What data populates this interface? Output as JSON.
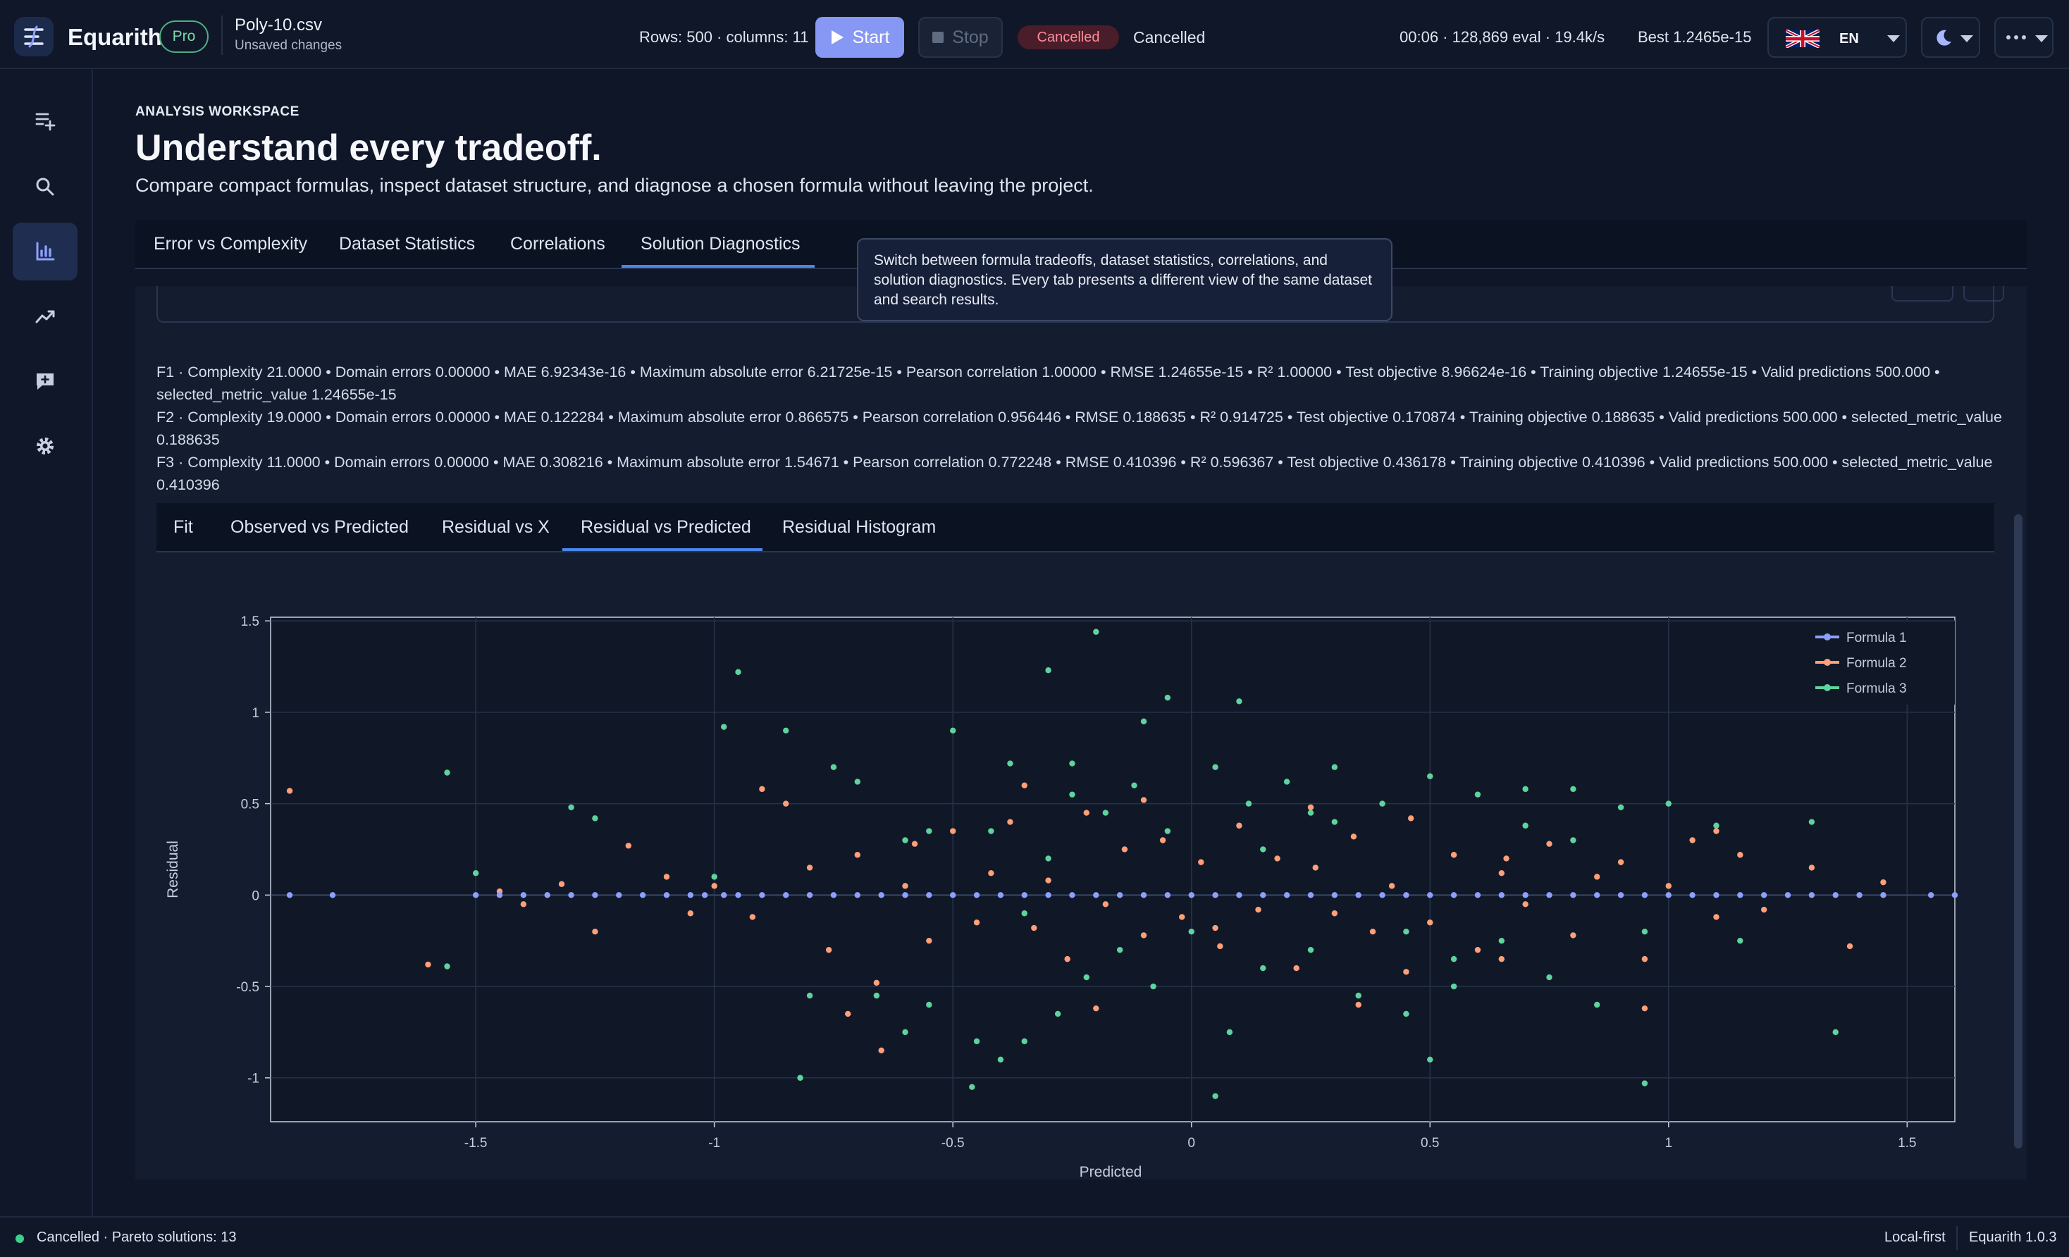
{
  "app": {
    "name": "Equarith",
    "plan": "Pro"
  },
  "file": {
    "name": "Poly-10.csv",
    "status": "Unsaved changes"
  },
  "dataset_info": "Rows: 500 · columns: 11",
  "toolbar": {
    "start_label": "Start",
    "stop_label": "Stop",
    "status_badge": "Cancelled",
    "status_text": "Cancelled",
    "run_stats": "00:06 · 128,869 eval · 19.4k/s",
    "best": "Best 1.2465e-15",
    "language": "EN"
  },
  "page": {
    "eyebrow": "ANALYSIS WORKSPACE",
    "title": "Understand every tradeoff.",
    "subtitle": "Compare compact formulas, inspect dataset structure, and diagnose a chosen formula without leaving the project."
  },
  "tabs": [
    {
      "label": "Error vs Complexity"
    },
    {
      "label": "Dataset Statistics"
    },
    {
      "label": "Correlations"
    },
    {
      "label": "Solution Diagnostics",
      "active": true
    }
  ],
  "tooltip": "Switch between formula tradeoffs, dataset statistics, correlations, and solution diagnostics. Every tab presents a different view of the same dataset and search results.",
  "metrics": [
    "F1 · Complexity 21.0000 • Domain errors 0.00000 • MAE 6.92343e-16 • Maximum absolute error 6.21725e-15 • Pearson correlation 1.00000 • RMSE 1.24655e-15 • R² 1.00000 • Test objective 8.96624e-16 • Training objective 1.24655e-15 • Valid predictions 500.000 • selected_metric_value 1.24655e-15",
    "F2 · Complexity 19.0000 • Domain errors 0.00000 • MAE 0.122284 • Maximum absolute error 0.866575 • Pearson correlation 0.956446 • RMSE 0.188635 • R² 0.914725 • Test objective 0.170874 • Training objective 0.188635 • Valid predictions 500.000 • selected_metric_value 0.188635",
    "F3 · Complexity 11.0000 • Domain errors 0.00000 • MAE 0.308216 • Maximum absolute error 1.54671 • Pearson correlation 0.772248 • RMSE 0.410396 • R² 0.596367 • Test objective 0.436178 • Training objective 0.410396 • Valid predictions 500.000 • selected_metric_value 0.410396"
  ],
  "sub_tabs": [
    {
      "label": "Fit"
    },
    {
      "label": "Observed vs Predicted"
    },
    {
      "label": "Residual vs X"
    },
    {
      "label": "Residual vs Predicted",
      "active": true
    },
    {
      "label": "Residual Histogram"
    }
  ],
  "nav_icons": [
    "add-list-icon",
    "search-icon",
    "bar-chart-icon",
    "trend-icon",
    "feedback-icon",
    "gear-icon"
  ],
  "chart_data": {
    "type": "scatter",
    "xlabel": "Predicted",
    "ylabel": "Residual",
    "xlim": [
      -1.93,
      1.6
    ],
    "ylim": [
      -1.24,
      1.52
    ],
    "x_ticks": [
      -1.5,
      -1,
      -0.5,
      0,
      0.5,
      1,
      1.5
    ],
    "y_ticks": [
      -1,
      -0.5,
      0,
      0.5,
      1,
      1.5
    ],
    "grid": true,
    "legend_position": "top-right",
    "series": [
      {
        "name": "Formula 1",
        "color": "#8ea0ff",
        "x": [
          -1.89,
          -1.8,
          -1.5,
          -1.45,
          -1.4,
          -1.35,
          -1.3,
          -1.25,
          -1.2,
          -1.15,
          -1.1,
          -1.05,
          -1.02,
          -0.98,
          -0.95,
          -0.9,
          -0.85,
          -0.8,
          -0.75,
          -0.7,
          -0.65,
          -0.6,
          -0.55,
          -0.5,
          -0.45,
          -0.4,
          -0.35,
          -0.3,
          -0.25,
          -0.2,
          -0.15,
          -0.1,
          -0.05,
          0,
          0.05,
          0.1,
          0.15,
          0.2,
          0.25,
          0.3,
          0.35,
          0.4,
          0.45,
          0.5,
          0.55,
          0.6,
          0.65,
          0.7,
          0.75,
          0.8,
          0.85,
          0.9,
          0.95,
          1,
          1.05,
          1.1,
          1.15,
          1.2,
          1.25,
          1.3,
          1.35,
          1.4,
          1.45,
          1.55,
          1.6
        ],
        "y": [
          0,
          0,
          0,
          0,
          0,
          0,
          0,
          0,
          0,
          0,
          0,
          0,
          0,
          0,
          0,
          0,
          0,
          0,
          0,
          0,
          0,
          0,
          0,
          0,
          0,
          0,
          0,
          0,
          0,
          0,
          0,
          0,
          0,
          0,
          0,
          0,
          0,
          0,
          0,
          0,
          0,
          0,
          0,
          0,
          0,
          0,
          0,
          0,
          0,
          0,
          0,
          0,
          0,
          0,
          0,
          0,
          0,
          0,
          0,
          0,
          0,
          0,
          0,
          0,
          0
        ]
      },
      {
        "name": "Formula 2",
        "color": "#ff9f7a",
        "x": [
          -1.89,
          -1.6,
          -1.45,
          -1.4,
          -1.32,
          -1.25,
          -1.18,
          -1.1,
          -1.05,
          -1.0,
          -0.92,
          -0.85,
          -0.8,
          -0.76,
          -0.7,
          -0.66,
          -0.6,
          -0.55,
          -0.5,
          -0.45,
          -0.42,
          -0.38,
          -0.33,
          -0.3,
          -0.26,
          -0.22,
          -0.18,
          -0.14,
          -0.1,
          -0.06,
          -0.02,
          0.02,
          0.06,
          0.1,
          0.14,
          0.18,
          0.22,
          0.26,
          0.3,
          0.34,
          0.38,
          0.42,
          0.46,
          0.5,
          0.55,
          0.6,
          0.65,
          0.7,
          0.75,
          0.8,
          0.85,
          0.9,
          0.95,
          1.0,
          1.05,
          1.1,
          1.15,
          1.2,
          1.3,
          1.38,
          1.45,
          -0.72,
          -0.58,
          -0.35,
          -0.2,
          0.05,
          0.25,
          0.45,
          0.65,
          0.95,
          1.1,
          -0.9,
          -0.65,
          -0.1,
          0.35,
          0.66
        ],
        "y": [
          0.57,
          -0.38,
          0.02,
          -0.05,
          0.06,
          -0.2,
          0.27,
          0.1,
          -0.1,
          0.05,
          -0.12,
          0.5,
          0.15,
          -0.3,
          0.22,
          -0.48,
          0.05,
          -0.25,
          0.35,
          -0.15,
          0.12,
          0.4,
          -0.18,
          0.08,
          -0.35,
          0.45,
          -0.05,
          0.25,
          -0.22,
          0.3,
          -0.12,
          0.18,
          -0.28,
          0.38,
          -0.08,
          0.2,
          -0.4,
          0.15,
          -0.1,
          0.32,
          -0.2,
          0.05,
          0.42,
          -0.15,
          0.22,
          -0.3,
          0.12,
          -0.05,
          0.28,
          -0.22,
          0.1,
          0.18,
          -0.35,
          0.05,
          0.3,
          -0.12,
          0.22,
          -0.08,
          0.15,
          -0.28,
          0.07,
          -0.65,
          0.28,
          0.6,
          -0.62,
          -0.18,
          0.48,
          -0.42,
          -0.35,
          -0.62,
          0.35,
          0.58,
          -0.85,
          0.52,
          -0.6,
          0.2
        ],
        "note": ""
      },
      {
        "name": "Formula 3",
        "color": "#5fd39e",
        "x": [
          -1.56,
          -1.56,
          -1.5,
          -1.3,
          -1.25,
          -1.0,
          -0.98,
          -0.95,
          -0.85,
          -0.82,
          -0.75,
          -0.7,
          -0.66,
          -0.6,
          -0.55,
          -0.5,
          -0.46,
          -0.42,
          -0.38,
          -0.35,
          -0.3,
          -0.28,
          -0.25,
          -0.22,
          -0.18,
          -0.15,
          -0.12,
          -0.08,
          -0.05,
          0,
          0.05,
          0.08,
          0.12,
          0.15,
          0.2,
          0.25,
          0.3,
          0.35,
          0.4,
          0.45,
          0.5,
          0.55,
          0.6,
          0.65,
          0.7,
          0.75,
          0.8,
          0.85,
          0.9,
          0.95,
          1.0,
          1.1,
          1.15,
          1.3,
          1.35,
          -0.2,
          -0.05,
          0.1,
          -0.45,
          -0.3,
          -0.1,
          0.3,
          0.5,
          -0.6,
          -0.4,
          -0.25,
          0.05,
          0.25,
          0.55,
          0.8,
          0.95,
          -0.8,
          -0.55,
          -0.35,
          0.15,
          0.45,
          0.7
        ],
        "y": [
          0.67,
          -0.39,
          0.12,
          0.48,
          0.42,
          0.1,
          0.92,
          1.22,
          0.9,
          -1.0,
          0.7,
          0.62,
          -0.55,
          0.3,
          -0.6,
          0.9,
          -1.05,
          0.35,
          0.72,
          -0.8,
          0.2,
          -0.65,
          0.55,
          -0.45,
          0.45,
          -0.3,
          0.6,
          -0.5,
          0.35,
          -0.2,
          0.7,
          -0.75,
          0.5,
          -0.4,
          0.62,
          -0.3,
          0.4,
          -0.55,
          0.5,
          -0.2,
          0.65,
          -0.35,
          0.55,
          -0.25,
          0.38,
          -0.45,
          0.3,
          -0.6,
          0.48,
          -1.03,
          0.5,
          0.38,
          -0.25,
          0.4,
          -0.75,
          1.44,
          1.08,
          1.06,
          -0.8,
          1.23,
          0.95,
          0.7,
          -0.9,
          -0.75,
          -0.9,
          0.72,
          -1.1,
          0.45,
          -0.5,
          0.58,
          -0.2,
          -0.55,
          0.35,
          -0.1,
          0.25,
          -0.65,
          0.58
        ]
      }
    ]
  },
  "status": {
    "left": "Cancelled · Pareto solutions: 13",
    "mode": "Local-first",
    "version": "Equarith 1.0.3"
  }
}
